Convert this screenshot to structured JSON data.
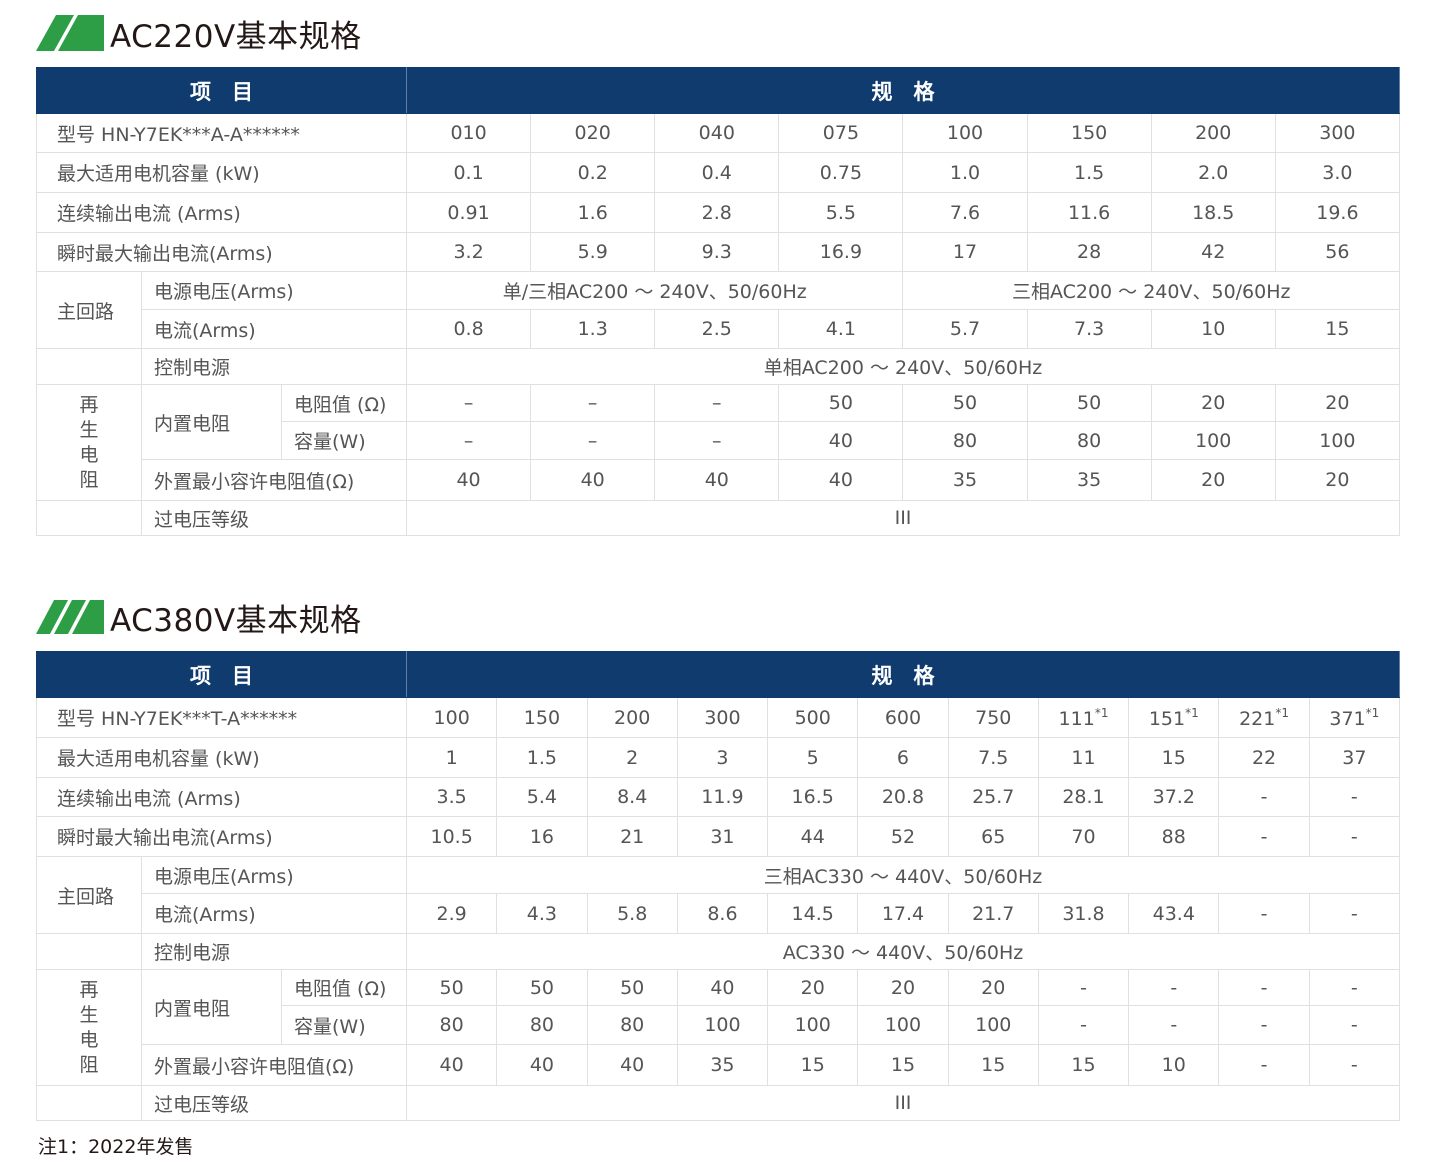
{
  "colors": {
    "header_bg": "#0f3b6e",
    "logo_green": "#2e9e46"
  },
  "tables": [
    {
      "title": "AC220V基本规格",
      "logo_icon": "green-double-stripe-logo",
      "header": {
        "item": "项　目",
        "spec": "规　格"
      },
      "model_label": "型号 HN-Y7EK***A-A******",
      "models": [
        {
          "text": "010"
        },
        {
          "text": "020"
        },
        {
          "text": "040"
        },
        {
          "text": "075"
        },
        {
          "text": "100"
        },
        {
          "text": "150"
        },
        {
          "text": "200"
        },
        {
          "text": "300"
        }
      ],
      "rows": {
        "motor": {
          "label": "最大适用电机容量 (kW)",
          "values": [
            "0.1",
            "0.2",
            "0.4",
            "0.75",
            "1.0",
            "1.5",
            "2.0",
            "3.0"
          ]
        },
        "cont_current": {
          "label": "连续输出电流 (Arms)",
          "values": [
            "0.91",
            "1.6",
            "2.8",
            "5.5",
            "7.6",
            "11.6",
            "18.5",
            "19.6"
          ]
        },
        "peak_current": {
          "label": "瞬时最大输出电流(Arms)",
          "values": [
            "3.2",
            "5.9",
            "9.3",
            "16.9",
            "17",
            "28",
            "42",
            "56"
          ]
        },
        "main_group": "主回路",
        "supply_voltage": {
          "label": "电源电压(Arms)",
          "merged": [
            {
              "text": "单/三相AC200 ～ 240V、50/60Hz",
              "span": 4
            },
            {
              "text": "三相AC200 ～ 240V、50/60Hz",
              "span": 4
            }
          ]
        },
        "current": {
          "label": "电流(Arms)",
          "values": [
            "0.8",
            "1.3",
            "2.5",
            "4.1",
            "5.7",
            "7.3",
            "10",
            "15"
          ]
        },
        "control_power": {
          "label": "控制电源",
          "merged": [
            {
              "text": "单相AC200 ～ 240V、50/60Hz",
              "span": 8
            }
          ]
        },
        "regen_group": [
          "再",
          "生",
          "电",
          "阻"
        ],
        "builtin_label": "内置电阻",
        "resistance": {
          "label": "电阻值 (Ω)",
          "values": [
            "–",
            "–",
            "–",
            "50",
            "50",
            "50",
            "20",
            "20"
          ]
        },
        "capacity": {
          "label": "容量(W)",
          "values": [
            "–",
            "–",
            "–",
            "40",
            "80",
            "80",
            "100",
            "100"
          ]
        },
        "external_min": {
          "label": "外置最小容许电阻值(Ω)",
          "values": [
            "40",
            "40",
            "40",
            "40",
            "35",
            "35",
            "20",
            "20"
          ]
        },
        "overvoltage": {
          "label": "过电压等级",
          "merged": [
            {
              "text": "III",
              "span": 8
            }
          ]
        }
      }
    },
    {
      "title": "AC380V基本规格",
      "logo_icon": "green-triple-stripe-logo",
      "header": {
        "item": "项　目",
        "spec": "规　格"
      },
      "model_label": "型号 HN-Y7EK***T-A******",
      "models": [
        {
          "text": "100"
        },
        {
          "text": "150"
        },
        {
          "text": "200"
        },
        {
          "text": "300"
        },
        {
          "text": "500"
        },
        {
          "text": "600"
        },
        {
          "text": "750"
        },
        {
          "text": "111",
          "sup": "*1"
        },
        {
          "text": "151",
          "sup": "*1"
        },
        {
          "text": "221",
          "sup": "*1"
        },
        {
          "text": "371",
          "sup": "*1"
        }
      ],
      "rows": {
        "motor": {
          "label": "最大适用电机容量 (kW)",
          "values": [
            "1",
            "1.5",
            "2",
            "3",
            "5",
            "6",
            "7.5",
            "11",
            "15",
            "22",
            "37"
          ]
        },
        "cont_current": {
          "label": "连续输出电流 (Arms)",
          "values": [
            "3.5",
            "5.4",
            "8.4",
            "11.9",
            "16.5",
            "20.8",
            "25.7",
            "28.1",
            "37.2",
            "-",
            "-"
          ]
        },
        "peak_current": {
          "label": "瞬时最大输出电流(Arms)",
          "values": [
            "10.5",
            "16",
            "21",
            "31",
            "44",
            "52",
            "65",
            "70",
            "88",
            "-",
            "-"
          ]
        },
        "main_group": "主回路",
        "supply_voltage": {
          "label": "电源电压(Arms)",
          "merged": [
            {
              "text": "三相AC330 ～ 440V、50/60Hz",
              "span": 11
            }
          ]
        },
        "current": {
          "label": "电流(Arms)",
          "values": [
            "2.9",
            "4.3",
            "5.8",
            "8.6",
            "14.5",
            "17.4",
            "21.7",
            "31.8",
            "43.4",
            "-",
            "-"
          ]
        },
        "control_power": {
          "label": "控制电源",
          "merged": [
            {
              "text": "AC330 ～ 440V、50/60Hz",
              "span": 11
            }
          ]
        },
        "regen_group": [
          "再",
          "生",
          "电",
          "阻"
        ],
        "builtin_label": "内置电阻",
        "resistance": {
          "label": "电阻值 (Ω)",
          "values": [
            "50",
            "50",
            "50",
            "40",
            "20",
            "20",
            "20",
            "-",
            "-",
            "-",
            "-"
          ]
        },
        "capacity": {
          "label": "容量(W)",
          "values": [
            "80",
            "80",
            "80",
            "100",
            "100",
            "100",
            "100",
            "-",
            "-",
            "-",
            "-"
          ]
        },
        "external_min": {
          "label": "外置最小容许电阻值(Ω)",
          "values": [
            "40",
            "40",
            "40",
            "35",
            "15",
            "15",
            "15",
            "15",
            "10",
            "-",
            "-"
          ]
        },
        "overvoltage": {
          "label": "过电压等级",
          "merged": [
            {
              "text": "III",
              "span": 11
            }
          ]
        }
      }
    }
  ],
  "note": "注1：2022年发售"
}
